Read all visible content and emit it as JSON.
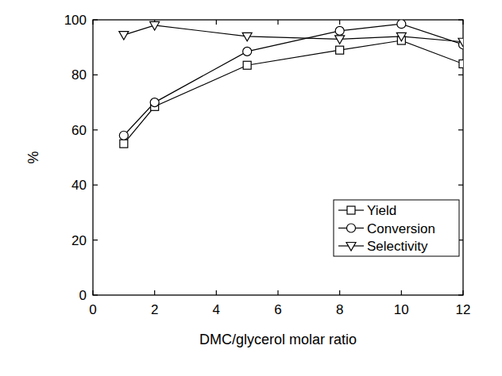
{
  "chart_data": {
    "type": "line",
    "x_label": "DMC/glycerol molar ratio",
    "y_label": "%",
    "xlim": [
      0,
      12
    ],
    "xticks": [
      0,
      2,
      4,
      6,
      8,
      10,
      12
    ],
    "ylim": [
      0,
      100
    ],
    "yticks": [
      0,
      20,
      40,
      60,
      80,
      100
    ],
    "legend": "lower right",
    "grid": false,
    "x": [
      1,
      2,
      5,
      8,
      10,
      12
    ],
    "series": [
      {
        "name": "Yield",
        "color": "#000000",
        "marker": "square",
        "line_style": "solid",
        "values": [
          55,
          68.5,
          83.5,
          89,
          92.5,
          84
        ]
      },
      {
        "name": "Conversion",
        "color": "#000000",
        "marker": "circle",
        "line_style": "solid",
        "values": [
          58,
          70,
          88.5,
          96,
          98.5,
          91
        ]
      },
      {
        "name": "Selectivity",
        "color": "#000000",
        "marker": "triangle-down",
        "line_style": "solid",
        "values": [
          94.5,
          98,
          94,
          93,
          94,
          92
        ]
      }
    ]
  }
}
